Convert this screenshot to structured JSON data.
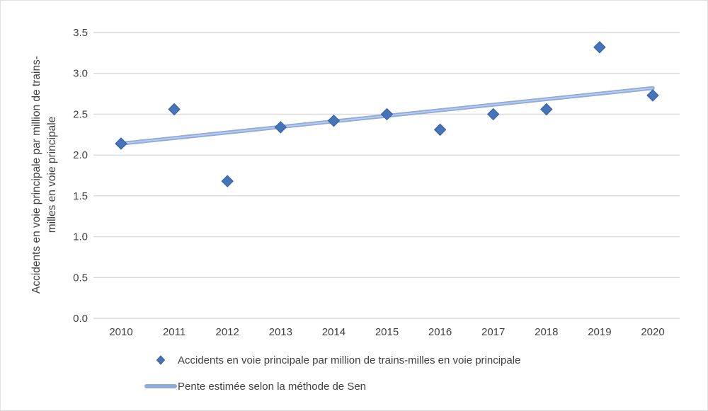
{
  "chart_data": {
    "type": "scatter",
    "title": "",
    "x": [
      2010,
      2011,
      2012,
      2013,
      2014,
      2015,
      2016,
      2017,
      2018,
      2019,
      2020
    ],
    "xticks": [
      "2010",
      "2011",
      "2012",
      "2013",
      "2014",
      "2015",
      "2016",
      "2017",
      "2018",
      "2019",
      "2020"
    ],
    "yticks": [
      "3.5",
      "3.0",
      "2.5",
      "2.0",
      "1.5",
      "1.0",
      "0.5",
      "0.0"
    ],
    "ylim": [
      0,
      3.5
    ],
    "ytick_step": 0.5,
    "grid": "horizontal",
    "legend_position": "bottom",
    "ylabel": "Accidents en voie principale par million de trains-milles en voie principale",
    "ylabel_lines": [
      "Accidents en voie principale par million de trains-",
      "milles en voie principale"
    ],
    "series": [
      {
        "name": "Accidents en voie principale par million de trains-milles en voie principale",
        "type": "scatter",
        "marker": "diamond",
        "color": "#4674ba",
        "border_color": "#315e9e",
        "values": [
          2.14,
          2.56,
          1.68,
          2.34,
          2.42,
          2.5,
          2.31,
          2.5,
          2.56,
          3.32,
          2.73
        ]
      },
      {
        "name": "Pente estimée selon la méthode de Sen",
        "type": "line",
        "color": "#8faadc",
        "highlight_color": "#bccde9",
        "x": [
          2010,
          2020
        ],
        "values": [
          2.14,
          2.82
        ]
      }
    ]
  },
  "colors": {
    "gridline": "#d9d9d9",
    "text": "#3f3f3f",
    "background": "#ffffff"
  }
}
